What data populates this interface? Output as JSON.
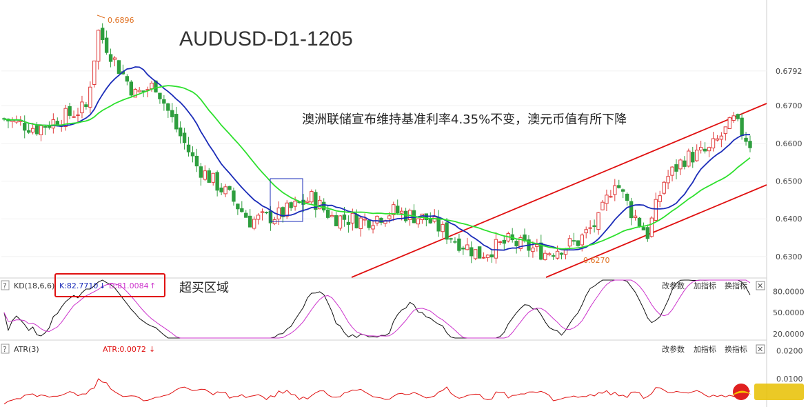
{
  "chart_data": [
    {
      "type": "candlestick",
      "title": "AUDUSD-D1-1205",
      "headline": "澳洲联储宣布维持基准利率4.35%不变，澳元币值有所下降",
      "price_ticks": [
        "0.6792",
        "0.6700",
        "0.6600",
        "0.6500",
        "0.6400",
        "0.6300"
      ],
      "ylim": [
        0.6245,
        0.698
      ],
      "high_label": "0.6896",
      "low_label": "0.6270",
      "colors": {
        "up": "#e03c3c",
        "down": "#2e9e3e",
        "ma_fast": "#1a2bb8",
        "ma_slow": "#2ee02e",
        "channel": "#e01010"
      }
    },
    {
      "type": "line",
      "indicator": "KD(18,6,6)",
      "k_label": "K:82.7710",
      "k_arrow": "↓",
      "d_label": "D:81.0084",
      "d_arrow": "↑",
      "annotation": "超买区域",
      "ticks": [
        "80.0000",
        "50.0000",
        "20.0000"
      ],
      "ylim": [
        12,
        98
      ],
      "colors": {
        "k": "#111111",
        "d": "#cc33cc",
        "highlight_box": "#e01010"
      }
    },
    {
      "type": "line",
      "indicator": "ATR(3)",
      "atr_label": "ATR:0.0072",
      "atr_arrow": "↓",
      "ticks": [
        "0.0200",
        "0.0100"
      ],
      "ylim": [
        0.0,
        0.0235
      ],
      "colors": {
        "atr": "#e01010"
      }
    }
  ],
  "panel_buttons": {
    "change_params": "改参数",
    "add_indicator": "加指标",
    "swap_indicator": "换指标",
    "close": "✕",
    "settings": "?"
  },
  "watermark": {
    "icon": "sun-logo"
  }
}
